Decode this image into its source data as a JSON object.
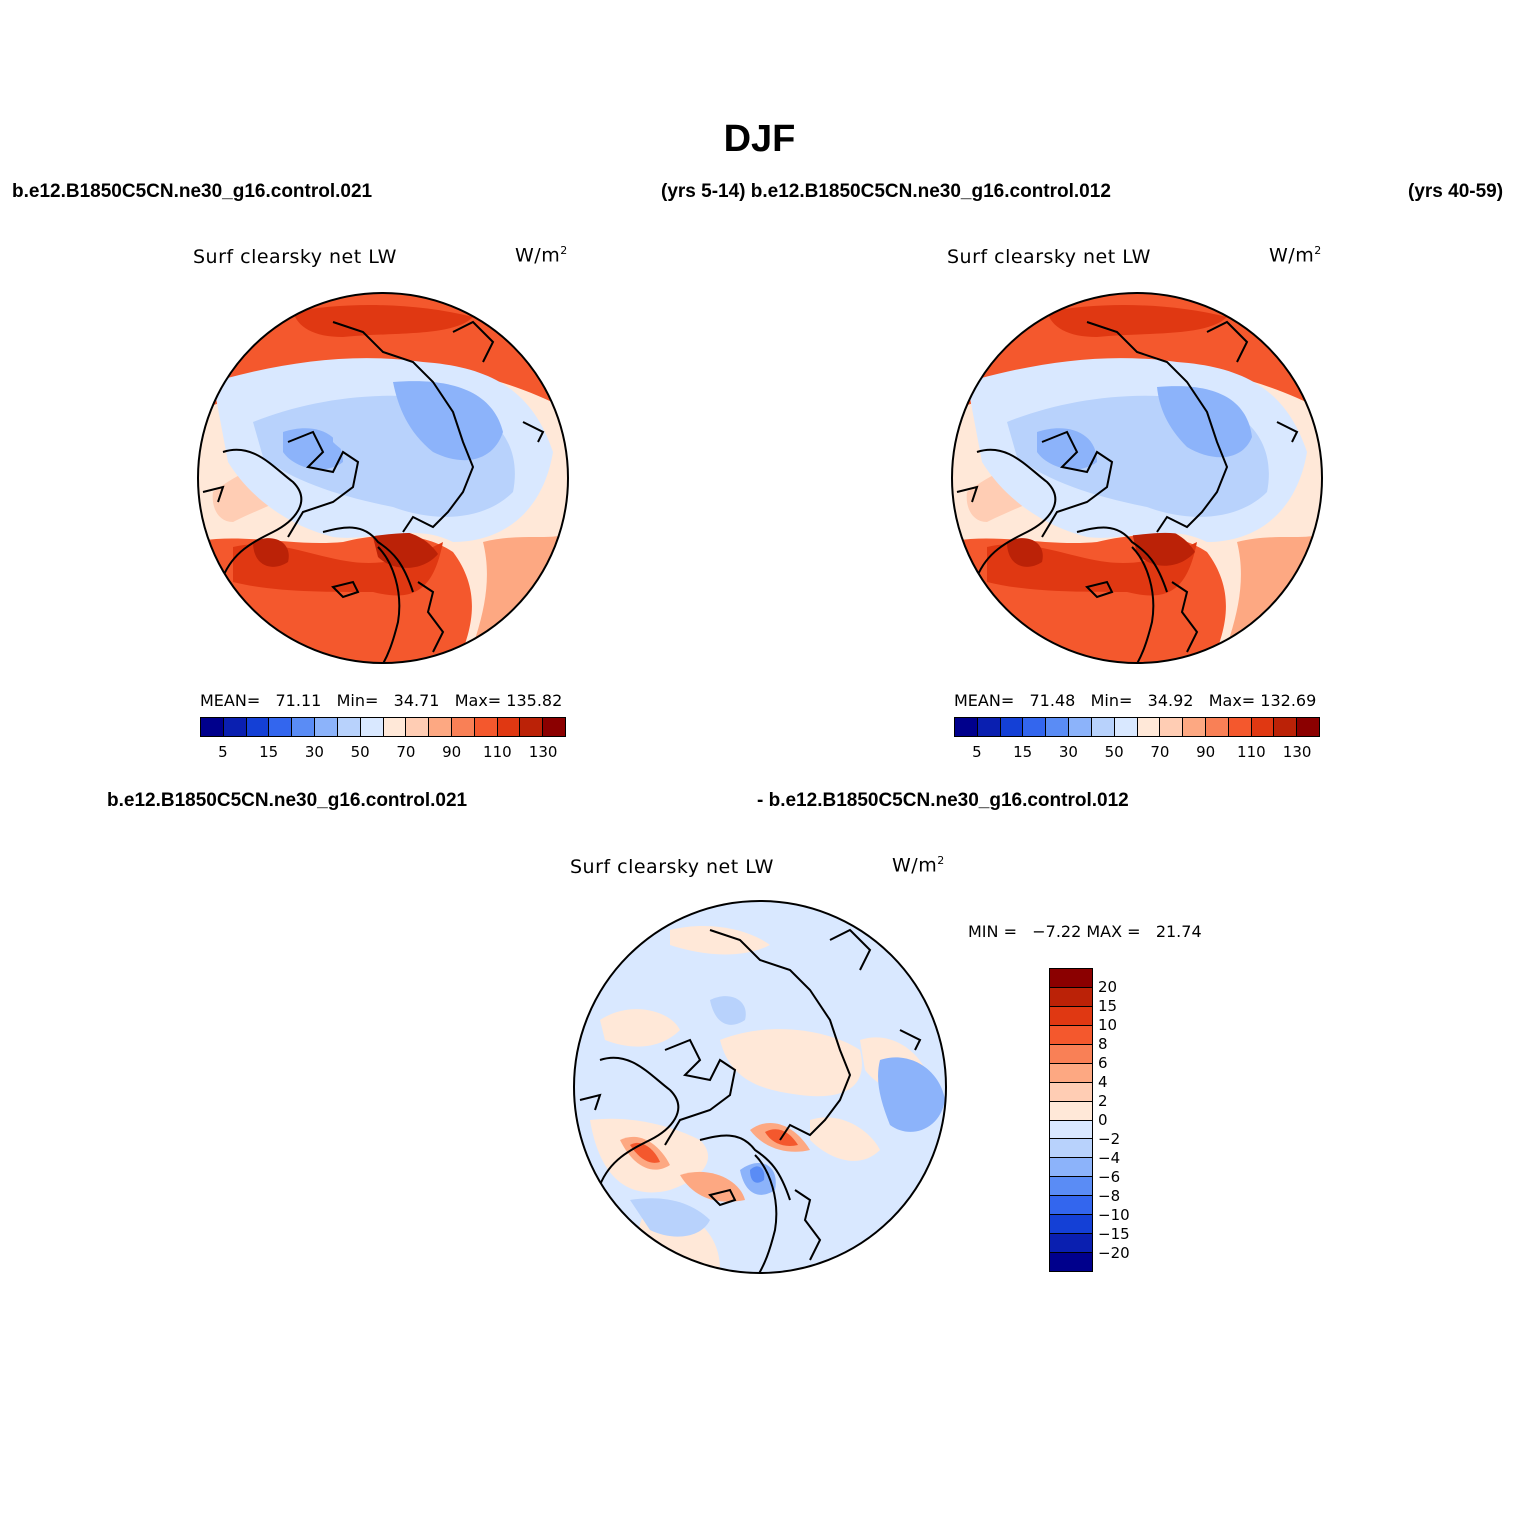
{
  "title": "DJF",
  "header_top": {
    "left_case": "b.e12.B1850C5CN.ne30_g16.control.021",
    "mid": "(yrs 5-14) b.e12.B1850C5CN.ne30_g16.control.012",
    "right_years": "(yrs 40-59)"
  },
  "header_bottom": {
    "left_case": "b.e12.B1850C5CN.ne30_g16.control.021",
    "right_case": "- b.e12.B1850C5CN.ne30_g16.control.012"
  },
  "panels": [
    {
      "variable": "Surf clearsky net LW",
      "units_base": "W/m",
      "units_exp": "2",
      "mean_label": "MEAN=",
      "mean": "71.11",
      "min_label": "Min=",
      "min": "34.71",
      "max_label": "Max=",
      "max": "135.82"
    },
    {
      "variable": "Surf clearsky net LW",
      "units_base": "W/m",
      "units_exp": "2",
      "mean_label": "MEAN=",
      "mean": "71.48",
      "min_label": "Min=",
      "min": "34.92",
      "max_label": "Max=",
      "max": "132.69"
    },
    {
      "variable": "Surf clearsky net LW",
      "units_base": "W/m",
      "units_exp": "2",
      "minmax": "MIN =   −7.22 MAX =   21.74"
    }
  ],
  "colorbar_main": {
    "colors": [
      "#00008c",
      "#0a1fb0",
      "#1440d6",
      "#3366ee",
      "#5a8cf5",
      "#8cb3fa",
      "#b8d2fc",
      "#d9e8ff",
      "#ffe8d8",
      "#ffcdb4",
      "#fda882",
      "#f98056",
      "#f4582d",
      "#e03812",
      "#bb2207",
      "#8b0000"
    ],
    "tick_labels": [
      "5",
      "15",
      "30",
      "50",
      "70",
      "90",
      "110",
      "130"
    ]
  },
  "colorbar_diff": {
    "colors": [
      "#8b0000",
      "#bb2207",
      "#e03812",
      "#f4582d",
      "#f98056",
      "#fda882",
      "#ffcdb4",
      "#ffe8d8",
      "#d9e8ff",
      "#b8d2fc",
      "#8cb3fa",
      "#5a8cf5",
      "#3366ee",
      "#1440d6",
      "#0a1fb0",
      "#00008c"
    ],
    "tick_labels": [
      "20",
      "15",
      "10",
      "8",
      "6",
      "4",
      "2",
      "0",
      "−2",
      "−4",
      "−6",
      "−8",
      "−10",
      "−15",
      "−20"
    ]
  }
}
